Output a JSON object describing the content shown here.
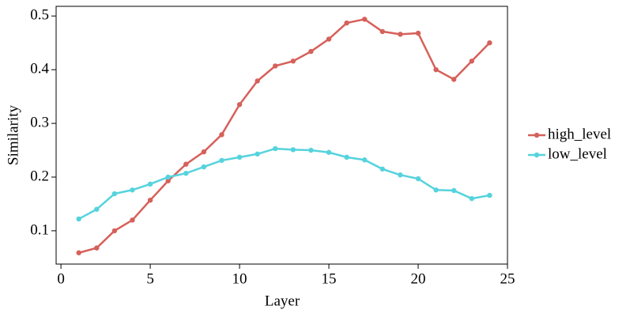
{
  "chart_data": {
    "type": "line",
    "x_label": "Layer",
    "y_label": "Similarity",
    "x": [
      1,
      2,
      3,
      4,
      5,
      6,
      7,
      8,
      9,
      10,
      11,
      12,
      13,
      14,
      15,
      16,
      17,
      18,
      19,
      20,
      21,
      22,
      23,
      24
    ],
    "series": [
      {
        "name": "high_level",
        "color": "#d6605a",
        "values": [
          0.059,
          0.068,
          0.1,
          0.12,
          0.157,
          0.193,
          0.224,
          0.247,
          0.279,
          0.335,
          0.379,
          0.407,
          0.416,
          0.434,
          0.457,
          0.487,
          0.494,
          0.471,
          0.466,
          0.468,
          0.4,
          0.382,
          0.416,
          0.45
        ]
      },
      {
        "name": "low_level",
        "color": "#55d3dd",
        "values": [
          0.122,
          0.14,
          0.169,
          0.176,
          0.187,
          0.2,
          0.207,
          0.219,
          0.231,
          0.237,
          0.243,
          0.253,
          0.251,
          0.25,
          0.246,
          0.237,
          0.232,
          0.215,
          0.204,
          0.197,
          0.176,
          0.175,
          0.16,
          0.166
        ]
      }
    ],
    "xlim": [
      -0.27,
      25
    ],
    "xticks": [
      0,
      5,
      10,
      15,
      20,
      25
    ],
    "ylim": [
      0.038,
      0.518
    ],
    "yticks": [
      0.1,
      0.2,
      0.3,
      0.4,
      0.5
    ],
    "legend": "right"
  }
}
